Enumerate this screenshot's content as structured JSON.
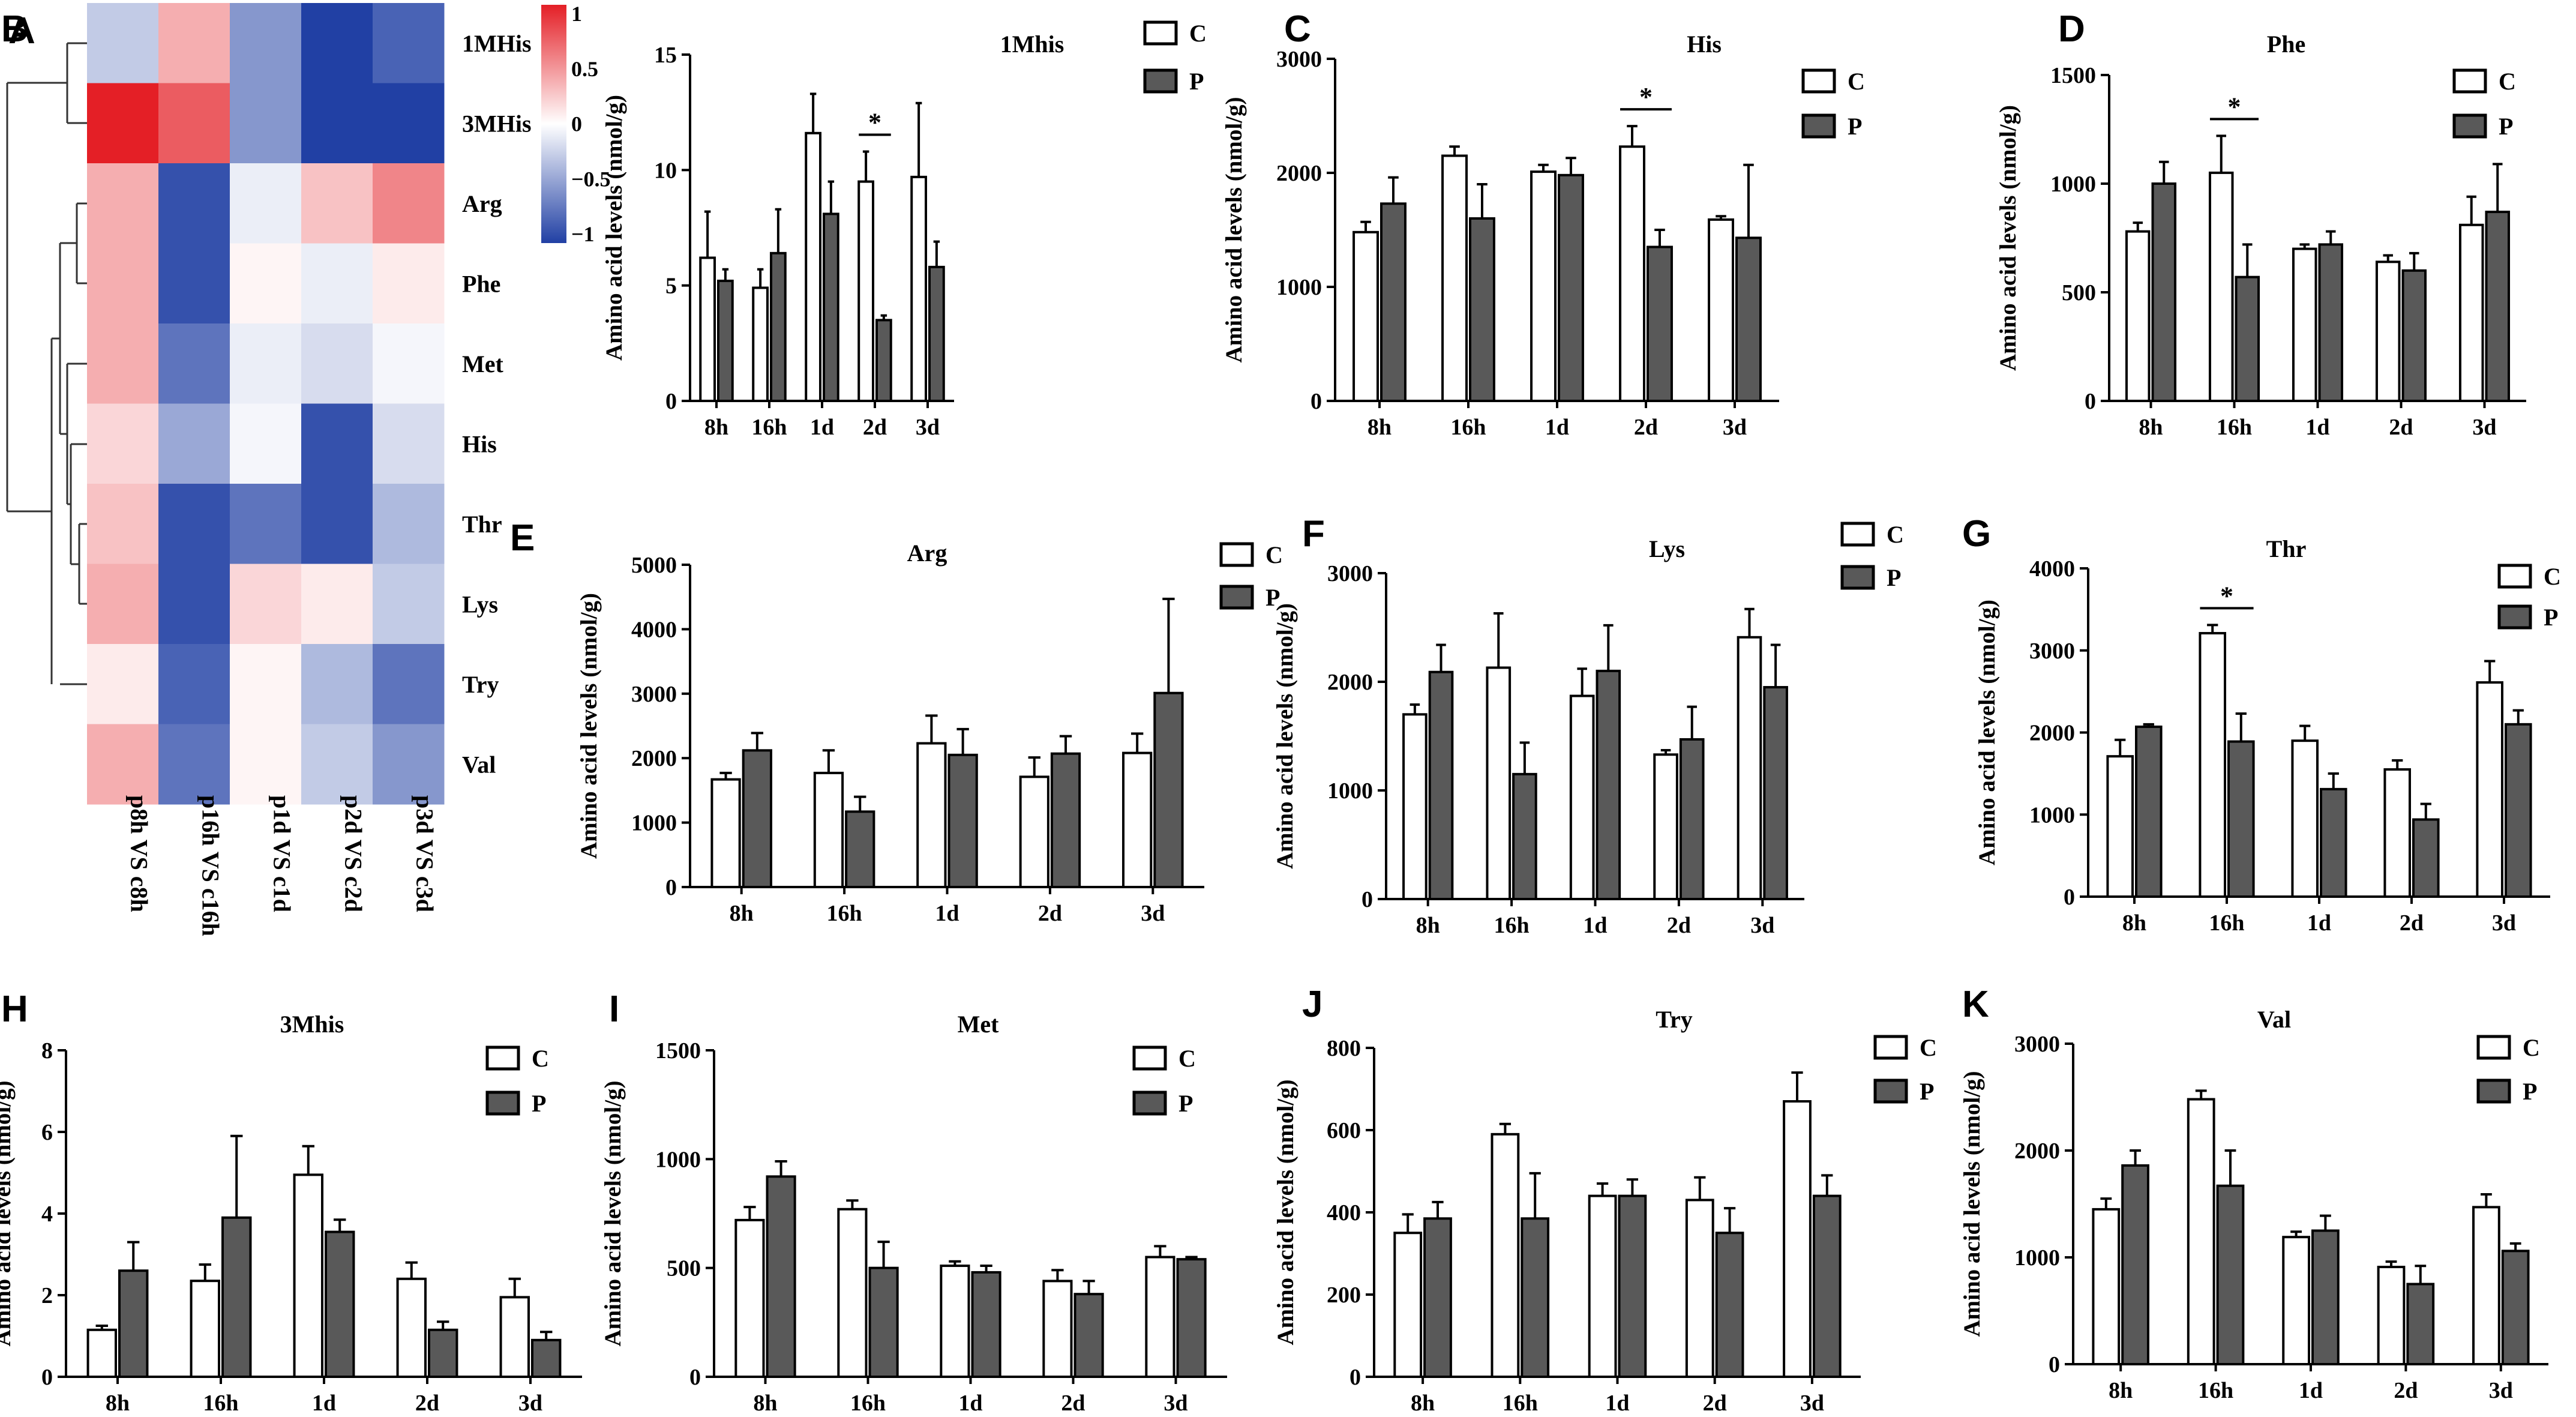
{
  "heatmap": {
    "panel_letter": "A",
    "rows": [
      "1MHis",
      "3MHis",
      "Arg",
      "Phe",
      "Met",
      "His",
      "Thr",
      "Lys",
      "Try",
      "Val"
    ],
    "columns": [
      "p8h VS c8h",
      "p16h VS c16h",
      "p1d VS c1d",
      "p2d VS c2d",
      "p3d VS c3d"
    ],
    "values": [
      [
        -0.3,
        0.4,
        -0.6,
        -1.1,
        -0.9
      ],
      [
        1.1,
        0.8,
        -0.6,
        -1.1,
        -1.1
      ],
      [
        0.4,
        -1.0,
        -0.1,
        0.3,
        0.6
      ],
      [
        0.4,
        -1.0,
        0.05,
        -0.1,
        0.1
      ],
      [
        0.4,
        -0.8,
        -0.1,
        -0.2,
        -0.05
      ],
      [
        0.2,
        -0.5,
        -0.05,
        -1.0,
        -0.2
      ],
      [
        0.3,
        -1.0,
        -0.8,
        -1.0,
        -0.4
      ],
      [
        0.4,
        -1.0,
        0.2,
        0.1,
        -0.3
      ],
      [
        0.1,
        -0.9,
        0.05,
        -0.4,
        -0.8
      ],
      [
        0.4,
        -0.8,
        0.05,
        -0.3,
        -0.6
      ]
    ],
    "colorbar": {
      "ticks": [
        "1",
        "0.5",
        "0",
        "−0.5",
        "−1"
      ],
      "low_color": "#2140a4",
      "mid_color": "#ffffff",
      "high_color": "#e41f26"
    }
  },
  "legend": {
    "control": "C",
    "treatment": "P"
  },
  "colors": {
    "control_fill": "#ffffff",
    "treatment_fill": "#595959",
    "stroke": "#000000"
  },
  "ylabel": "Amino acid levels (nmol/g)",
  "chart_data": [
    {
      "panel": "B",
      "type": "bar",
      "title": "1Mhis",
      "categories": [
        "8h",
        "16h",
        "1d",
        "2d",
        "3d"
      ],
      "series": [
        {
          "name": "C",
          "values": [
            6.2,
            4.9,
            11.6,
            9.5,
            9.7
          ],
          "errors": [
            2.0,
            0.8,
            1.7,
            1.3,
            3.2
          ]
        },
        {
          "name": "P",
          "values": [
            5.2,
            6.4,
            8.1,
            3.5,
            5.8
          ],
          "errors": [
            0.5,
            1.9,
            1.4,
            0.2,
            1.1
          ]
        }
      ],
      "ylim": [
        0,
        15
      ],
      "yticks": [
        "0",
        "5",
        "10",
        "15"
      ],
      "yticks_values": [
        0,
        5,
        10,
        15
      ],
      "sig": [
        {
          "cat": 3,
          "label": "*"
        }
      ]
    },
    {
      "panel": "C",
      "type": "bar",
      "title": "His",
      "categories": [
        "8h",
        "16h",
        "1d",
        "2d",
        "3d"
      ],
      "series": [
        {
          "name": "C",
          "values": [
            1480,
            2150,
            2010,
            2230,
            1590
          ],
          "errors": [
            90,
            80,
            60,
            180,
            30
          ]
        },
        {
          "name": "P",
          "values": [
            1730,
            1600,
            1980,
            1350,
            1430
          ],
          "errors": [
            230,
            300,
            150,
            150,
            640
          ]
        }
      ],
      "ylim": [
        0,
        3000
      ],
      "yticks": [
        "0",
        "1000",
        "2000",
        "3000"
      ],
      "yticks_values": [
        0,
        1000,
        2000,
        3000
      ],
      "sig": [
        {
          "cat": 3,
          "label": "*"
        }
      ]
    },
    {
      "panel": "D",
      "type": "bar",
      "title": "Phe",
      "categories": [
        "8h",
        "16h",
        "1d",
        "2d",
        "3d"
      ],
      "series": [
        {
          "name": "C",
          "values": [
            780,
            1050,
            700,
            640,
            810
          ],
          "errors": [
            40,
            170,
            20,
            30,
            130
          ]
        },
        {
          "name": "P",
          "values": [
            1000,
            570,
            720,
            600,
            870
          ],
          "errors": [
            100,
            150,
            60,
            80,
            220
          ]
        }
      ],
      "ylim": [
        0,
        1500
      ],
      "yticks": [
        "0",
        "500",
        "1000",
        "1500"
      ],
      "yticks_values": [
        0,
        500,
        1000,
        1500
      ],
      "sig": [
        {
          "cat": 1,
          "label": "*"
        }
      ]
    },
    {
      "panel": "E",
      "type": "bar",
      "title": "Arg",
      "categories": [
        "8h",
        "16h",
        "1d",
        "2d",
        "3d"
      ],
      "series": [
        {
          "name": "C",
          "values": [
            1670,
            1770,
            2230,
            1710,
            2080
          ],
          "errors": [
            100,
            350,
            430,
            300,
            300
          ]
        },
        {
          "name": "P",
          "values": [
            2120,
            1170,
            2050,
            2070,
            3010
          ],
          "errors": [
            270,
            230,
            400,
            270,
            1460
          ]
        }
      ],
      "ylim": [
        0,
        5000
      ],
      "yticks": [
        "0",
        "1000",
        "2000",
        "3000",
        "4000",
        "5000"
      ],
      "yticks_values": [
        0,
        1000,
        2000,
        3000,
        4000,
        5000
      ],
      "sig": []
    },
    {
      "panel": "F",
      "type": "bar",
      "title": "Lys",
      "categories": [
        "8h",
        "16h",
        "1d",
        "2d",
        "3d"
      ],
      "series": [
        {
          "name": "C",
          "values": [
            1700,
            2130,
            1870,
            1330,
            2410
          ],
          "errors": [
            90,
            500,
            250,
            40,
            260
          ]
        },
        {
          "name": "P",
          "values": [
            2090,
            1150,
            2100,
            1470,
            1950
          ],
          "errors": [
            250,
            290,
            420,
            300,
            390
          ]
        }
      ],
      "ylim": [
        0,
        3000
      ],
      "yticks": [
        "0",
        "1000",
        "2000",
        "3000"
      ],
      "yticks_values": [
        0,
        1000,
        2000,
        3000
      ],
      "sig": []
    },
    {
      "panel": "G",
      "type": "bar",
      "title": "Thr",
      "categories": [
        "8h",
        "16h",
        "1d",
        "2d",
        "3d"
      ],
      "series": [
        {
          "name": "C",
          "values": [
            1710,
            3210,
            1900,
            1550,
            2610
          ],
          "errors": [
            200,
            100,
            180,
            110,
            260
          ]
        },
        {
          "name": "P",
          "values": [
            2070,
            1890,
            1310,
            940,
            2100
          ],
          "errors": [
            30,
            340,
            190,
            190,
            170
          ]
        }
      ],
      "ylim": [
        0,
        4000
      ],
      "yticks": [
        "0",
        "1000",
        "2000",
        "3000",
        "4000"
      ],
      "yticks_values": [
        0,
        1000,
        2000,
        3000,
        4000
      ],
      "sig": [
        {
          "cat": 1,
          "label": "*"
        }
      ]
    },
    {
      "panel": "H",
      "type": "bar",
      "title": "3Mhis",
      "categories": [
        "8h",
        "16h",
        "1d",
        "2d",
        "3d"
      ],
      "series": [
        {
          "name": "C",
          "values": [
            1.15,
            2.35,
            4.95,
            2.4,
            1.95
          ],
          "errors": [
            0.1,
            0.4,
            0.7,
            0.4,
            0.45
          ]
        },
        {
          "name": "P",
          "values": [
            2.6,
            3.9,
            3.55,
            1.15,
            0.9
          ],
          "errors": [
            0.7,
            2.0,
            0.3,
            0.2,
            0.2
          ]
        }
      ],
      "ylim": [
        0,
        8
      ],
      "yticks": [
        "0",
        "2",
        "4",
        "6",
        "8"
      ],
      "yticks_values": [
        0,
        2,
        4,
        6,
        8
      ],
      "sig": []
    },
    {
      "panel": "I",
      "type": "bar",
      "title": "Met",
      "categories": [
        "8h",
        "16h",
        "1d",
        "2d",
        "3d"
      ],
      "series": [
        {
          "name": "C",
          "values": [
            720,
            770,
            510,
            440,
            550
          ],
          "errors": [
            60,
            40,
            20,
            50,
            50
          ]
        },
        {
          "name": "P",
          "values": [
            920,
            500,
            480,
            380,
            540
          ],
          "errors": [
            70,
            120,
            30,
            60,
            10
          ]
        }
      ],
      "ylim": [
        0,
        1500
      ],
      "yticks": [
        "0",
        "500",
        "1000",
        "1500"
      ],
      "yticks_values": [
        0,
        500,
        1000,
        1500
      ],
      "sig": []
    },
    {
      "panel": "J",
      "type": "bar",
      "title": "Try",
      "categories": [
        "8h",
        "16h",
        "1d",
        "2d",
        "3d"
      ],
      "series": [
        {
          "name": "C",
          "values": [
            350,
            590,
            440,
            430,
            670
          ],
          "errors": [
            45,
            25,
            30,
            55,
            70
          ]
        },
        {
          "name": "P",
          "values": [
            385,
            385,
            440,
            350,
            440
          ],
          "errors": [
            40,
            110,
            40,
            60,
            50
          ]
        }
      ],
      "ylim": [
        0,
        800
      ],
      "yticks": [
        "0",
        "200",
        "400",
        "600",
        "800"
      ],
      "yticks_values": [
        0,
        200,
        400,
        600,
        800
      ],
      "sig": []
    },
    {
      "panel": "K",
      "type": "bar",
      "title": "Val",
      "categories": [
        "8h",
        "16h",
        "1d",
        "2d",
        "3d"
      ],
      "series": [
        {
          "name": "C",
          "values": [
            1450,
            2480,
            1190,
            910,
            1470
          ],
          "errors": [
            100,
            80,
            50,
            50,
            120
          ]
        },
        {
          "name": "P",
          "values": [
            1860,
            1670,
            1250,
            750,
            1060
          ],
          "errors": [
            140,
            330,
            140,
            170,
            70
          ]
        }
      ],
      "ylim": [
        0,
        3000
      ],
      "yticks": [
        "0",
        "1000",
        "2000",
        "3000"
      ],
      "yticks_values": [
        0,
        1000,
        2000,
        3000
      ],
      "sig": []
    }
  ]
}
